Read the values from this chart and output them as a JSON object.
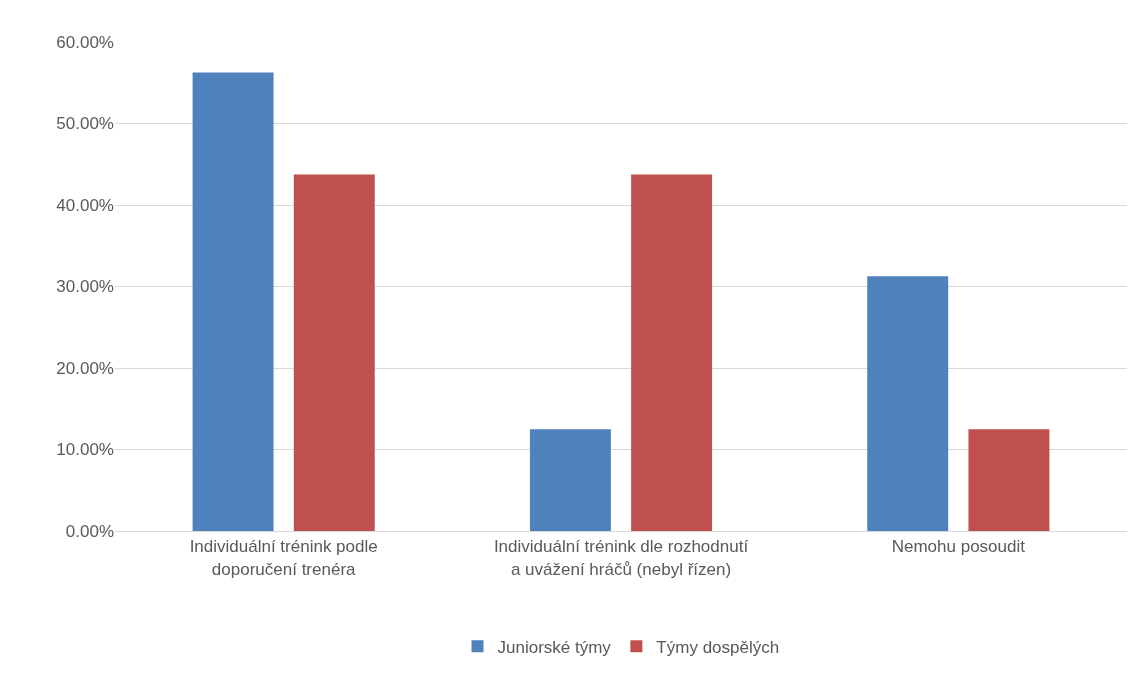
{
  "chart_data": {
    "type": "bar",
    "categories": [
      "Individuální trénink podle doporučení trenéra",
      "Individuální trénink dle rozhodnutí a uvážení hráčů (nebyl řízen)",
      "Nemohu posoudit"
    ],
    "series": [
      {
        "name": "Juniorské týmy",
        "color": "#4f81bd",
        "values": [
          56.25,
          12.5,
          31.25
        ]
      },
      {
        "name": "Týmy dospělých",
        "color": "#c0504d",
        "values": [
          43.75,
          43.75,
          12.5
        ]
      }
    ],
    "ylim": [
      0,
      60
    ],
    "yticks": [
      {
        "value": 0,
        "label": "0.00%"
      },
      {
        "value": 10,
        "label": "10.00%"
      },
      {
        "value": 20,
        "label": "20.00%"
      },
      {
        "value": 30,
        "label": "30.00%"
      },
      {
        "value": 40,
        "label": "40.00%"
      },
      {
        "value": 50,
        "label": "50.00%"
      },
      {
        "value": 60,
        "label": "60.00%"
      }
    ],
    "grid": "y",
    "legend": "bottom"
  }
}
